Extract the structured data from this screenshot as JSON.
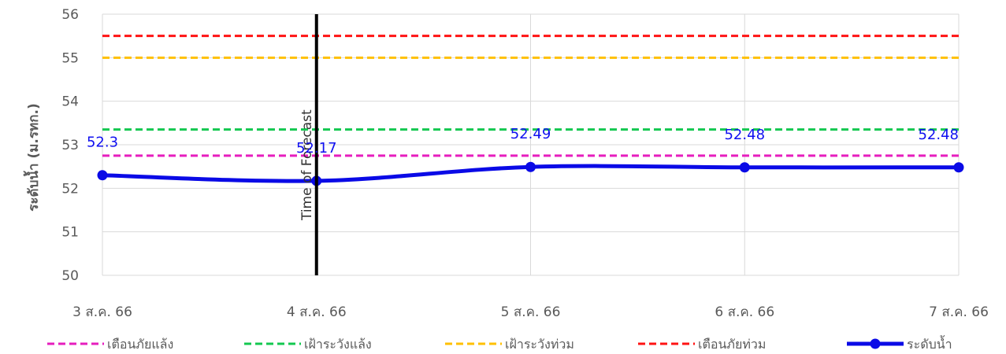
{
  "chart_data": {
    "type": "line",
    "x": [
      "3 ส.ค. 66",
      "4 ส.ค. 66",
      "5 ส.ค. 66",
      "6 ส.ค. 66",
      "7 ส.ค. 66"
    ],
    "ylabel": "ระดับน้ำ (ม.รทก.)",
    "ylim": [
      50,
      56
    ],
    "yticks": [
      50,
      51,
      52,
      53,
      54,
      55,
      56
    ],
    "grid": true,
    "legend_position": "bottom",
    "series": [
      {
        "name": "ระดับน้ำ",
        "values": [
          52.3,
          52.17,
          52.49,
          52.48,
          52.48
        ],
        "labels": [
          "52.3",
          "52.17",
          "52.49",
          "52.48",
          "52.48"
        ],
        "color": "#0a0ae6",
        "style": "solid-marker"
      }
    ],
    "thresholds": [
      {
        "name": "เตือนภัยแล้ง",
        "value": 52.75,
        "color": "#e61ebe",
        "style": "dashed"
      },
      {
        "name": "เฝ้าระวังแล้ง",
        "value": 53.35,
        "color": "#14c850",
        "style": "dashed"
      },
      {
        "name": "เฝ้าระวังท่วม",
        "value": 55.0,
        "color": "#ffc000",
        "style": "dashed"
      },
      {
        "name": "เตือนภัยท่วม",
        "value": 55.5,
        "color": "#ff1414",
        "style": "dashed"
      }
    ],
    "annotation": {
      "text": "Time of Forecast",
      "x": "4 ส.ค. 66"
    }
  }
}
